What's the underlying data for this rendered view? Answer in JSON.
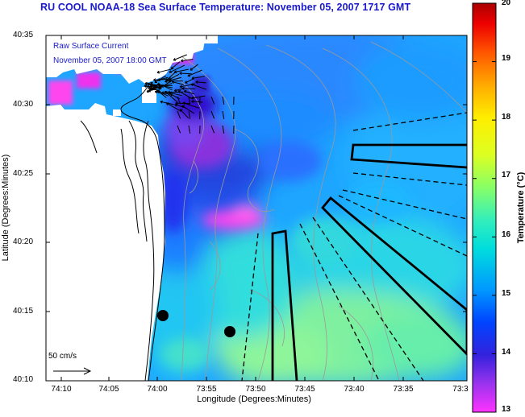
{
  "title": "RU COOL  NOAA-18  Sea Surface Temperature:  November 05, 2007 1717 GMT",
  "inset": {
    "line1": "Raw Surface Current",
    "line2": "November 05, 2007 18:00 GMT"
  },
  "scale_bar": {
    "label": "50 cm/s",
    "speed_cm_s": 50
  },
  "x_axis": {
    "title": "Longitude (Degrees:Minutes)",
    "ticks": [
      "74:10",
      "74:05",
      "74:00",
      "73:55",
      "73:50",
      "73:45",
      "73:40",
      "73:35",
      "73:3"
    ]
  },
  "y_axis": {
    "title": "Latitude (Degrees:Minutes)",
    "ticks": [
      "40:35",
      "40:30",
      "40:25",
      "40:20",
      "40:15",
      "40:10"
    ]
  },
  "colorbar": {
    "title": "Temperature (°C)",
    "min": 13,
    "max": 20,
    "ticks": [
      "20",
      "19",
      "18",
      "17",
      "16",
      "15",
      "14",
      "13"
    ]
  },
  "colors": {
    "title_blue": "#1a1acc",
    "land": "#ffffff",
    "coast": "#000000",
    "bathymetry": "#a0a0a0"
  }
}
